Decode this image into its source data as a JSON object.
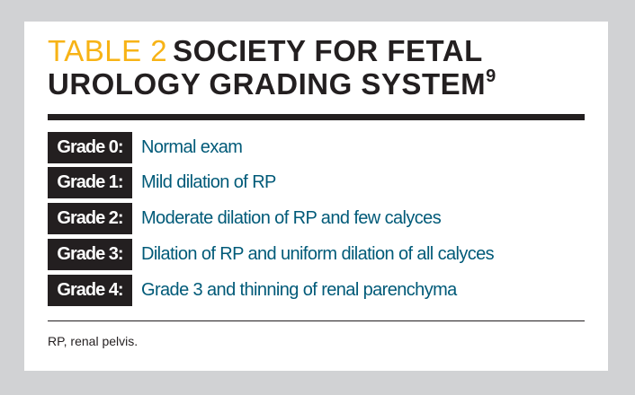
{
  "title": {
    "label": "TABLE 2",
    "text": "SOCIETY FOR FETAL UROLOGY GRADING SYSTEM",
    "ref": "9"
  },
  "rows": [
    {
      "grade": "Grade 0:",
      "desc": "Normal exam"
    },
    {
      "grade": "Grade 1:",
      "desc": "Mild dilation of RP"
    },
    {
      "grade": "Grade 2:",
      "desc": "Moderate dilation of RP and few calyces"
    },
    {
      "grade": "Grade 3:",
      "desc": "Dilation of RP and uniform dilation of all calyces"
    },
    {
      "grade": "Grade 4:",
      "desc": "Grade 3 and thinning of renal parenchyma"
    }
  ],
  "footnote": "RP, renal pelvis.",
  "colors": {
    "accent": "#f7b316",
    "text": "#005a78",
    "dark": "#231f20",
    "background": "#d1d2d4"
  }
}
